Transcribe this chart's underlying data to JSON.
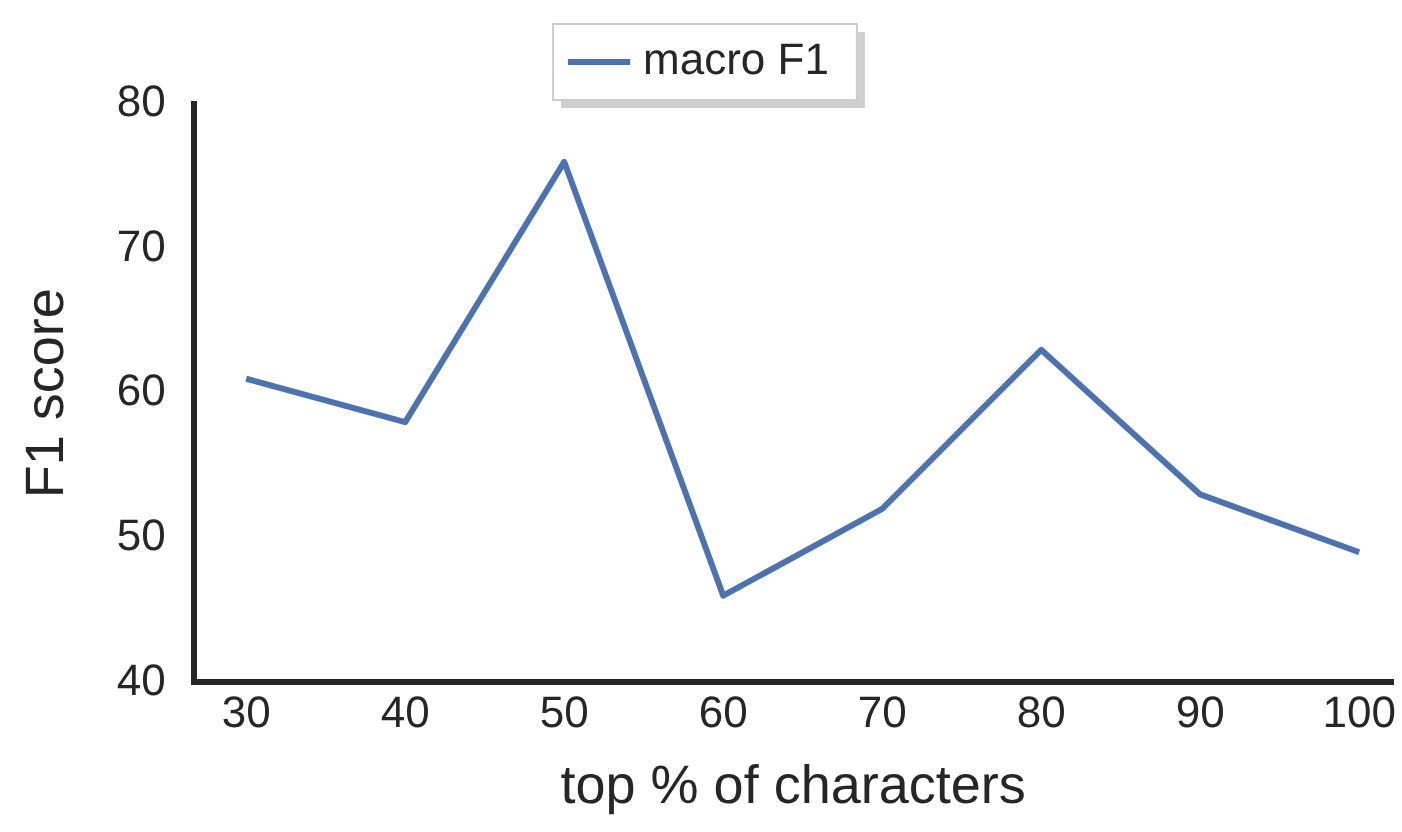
{
  "chart_data": {
    "type": "line",
    "xlabel": "top % of characters",
    "ylabel": "F1 score",
    "x": [
      30,
      40,
      50,
      60,
      70,
      80,
      90,
      100
    ],
    "series": [
      {
        "name": "macro F1",
        "color": "#4c72b0",
        "values": [
          61,
          58,
          76,
          46,
          52,
          63,
          53,
          49
        ]
      }
    ],
    "xlim": [
      26.7,
      102.1
    ],
    "xticks": [
      30,
      40,
      50,
      60,
      70,
      80,
      90,
      100
    ],
    "ylim": [
      40,
      80
    ],
    "yticks": [
      40,
      50,
      60,
      70,
      80
    ],
    "grid": false,
    "legend": "top",
    "marker": "none",
    "line_style": "solid"
  }
}
